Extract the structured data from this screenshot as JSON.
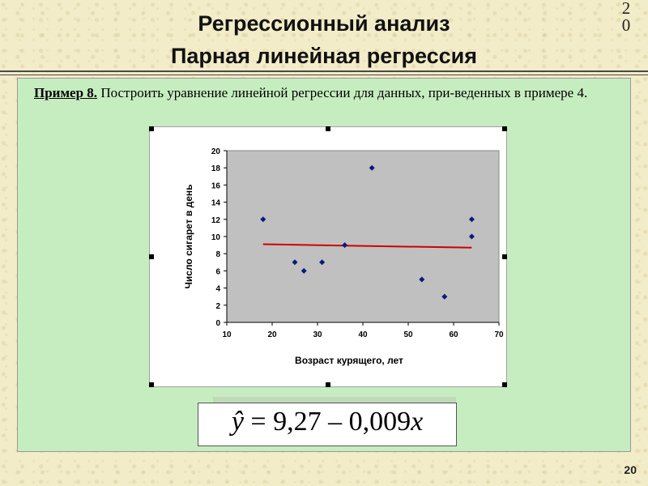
{
  "header": {
    "title_line1": "Регрессионный анализ",
    "title_line2": "Парная линейная регрессия",
    "corner_number": "20"
  },
  "example": {
    "lead": "Пример 8.",
    "text": " Построить уравнение линейной регрессии для данных, при-веденных в примере 4."
  },
  "formula": {
    "yhat": "ŷ",
    "rhs": " = 9,27 – 0,009",
    "var": "x"
  },
  "page_number": "20",
  "colors": {
    "panel": "#c6edbf",
    "plot_area": "#c0c0c0",
    "markers": "#0a1a7a",
    "trend_line": "#d00000"
  },
  "chart_data": {
    "type": "scatter",
    "title": "",
    "xlabel": "Возраст курящего, лет",
    "ylabel": "Число сигарет в день",
    "xlim": [
      10,
      70
    ],
    "ylim": [
      0,
      20
    ],
    "x_ticks": [
      10,
      20,
      30,
      40,
      50,
      60,
      70
    ],
    "y_ticks": [
      0,
      2,
      4,
      6,
      8,
      10,
      12,
      14,
      16,
      18,
      20
    ],
    "grid": false,
    "points": [
      {
        "x": 18,
        "y": 12
      },
      {
        "x": 25,
        "y": 7
      },
      {
        "x": 27,
        "y": 6
      },
      {
        "x": 31,
        "y": 7
      },
      {
        "x": 36,
        "y": 9
      },
      {
        "x": 42,
        "y": 18
      },
      {
        "x": 53,
        "y": 5
      },
      {
        "x": 58,
        "y": 3
      },
      {
        "x": 64,
        "y": 12
      },
      {
        "x": 64,
        "y": 10
      }
    ],
    "trend_line": {
      "x": [
        18,
        64
      ],
      "y": [
        9.1,
        8.7
      ]
    }
  }
}
